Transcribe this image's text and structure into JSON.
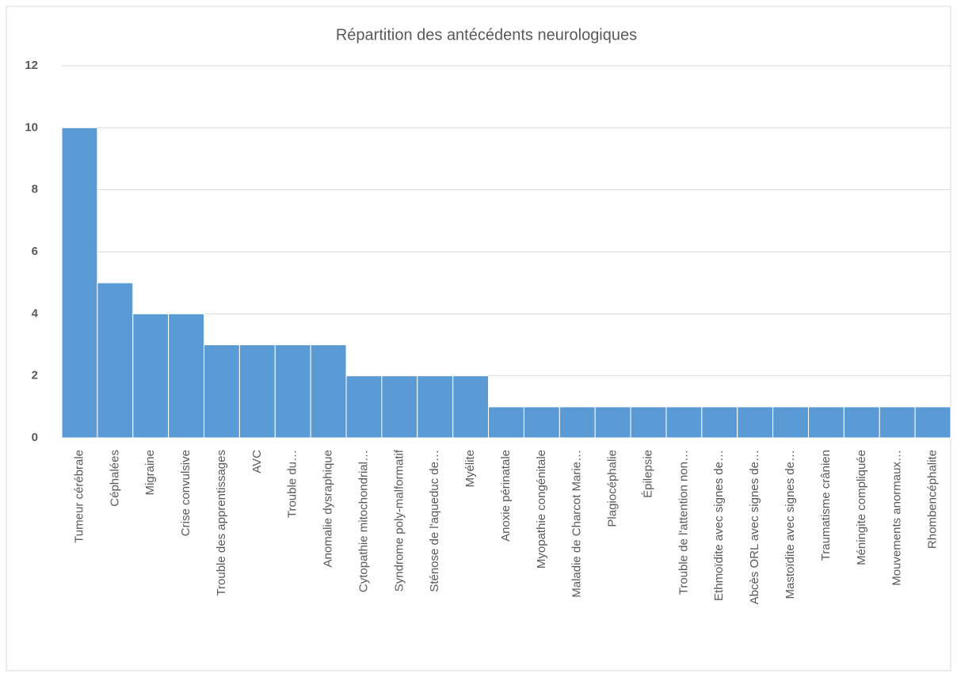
{
  "chart_data": {
    "type": "bar",
    "title": "Répartition des antécédents neurologiques",
    "categories": [
      "Tumeur cérébrale",
      "Céphalées",
      "Migraine",
      "Crise convulsive",
      "Trouble des apprentissages",
      "AVC",
      "Trouble du…",
      "Anomalie dysraphique",
      "Cytopathie mitochondrial…",
      "Syndrome poly-malformatif",
      "Sténose de l'aqueduc de…",
      "Myélite",
      "Anoxie périnatale",
      "Myopathie congénitale",
      "Maladie de Charcot Marie…",
      "Plagiocéphalie",
      "Épilepsie",
      "Trouble de l'attention non…",
      "Ethmoïdite avec signes de…",
      "Abcès ORL avec signes de…",
      "Mastoïdite avec signes de…",
      "Traumatisme crânien",
      "Méningite compliquée",
      "Mouvements anormaux…",
      "Rhombencéphalite"
    ],
    "values": [
      10,
      5,
      4,
      4,
      3,
      3,
      3,
      3,
      2,
      2,
      2,
      2,
      1,
      1,
      1,
      1,
      1,
      1,
      1,
      1,
      1,
      1,
      1,
      1,
      1
    ],
    "color": "#5b9bd5",
    "ylim": [
      0,
      12
    ],
    "yticks": [
      0,
      2,
      4,
      6,
      8,
      10,
      12
    ],
    "grid": true
  }
}
